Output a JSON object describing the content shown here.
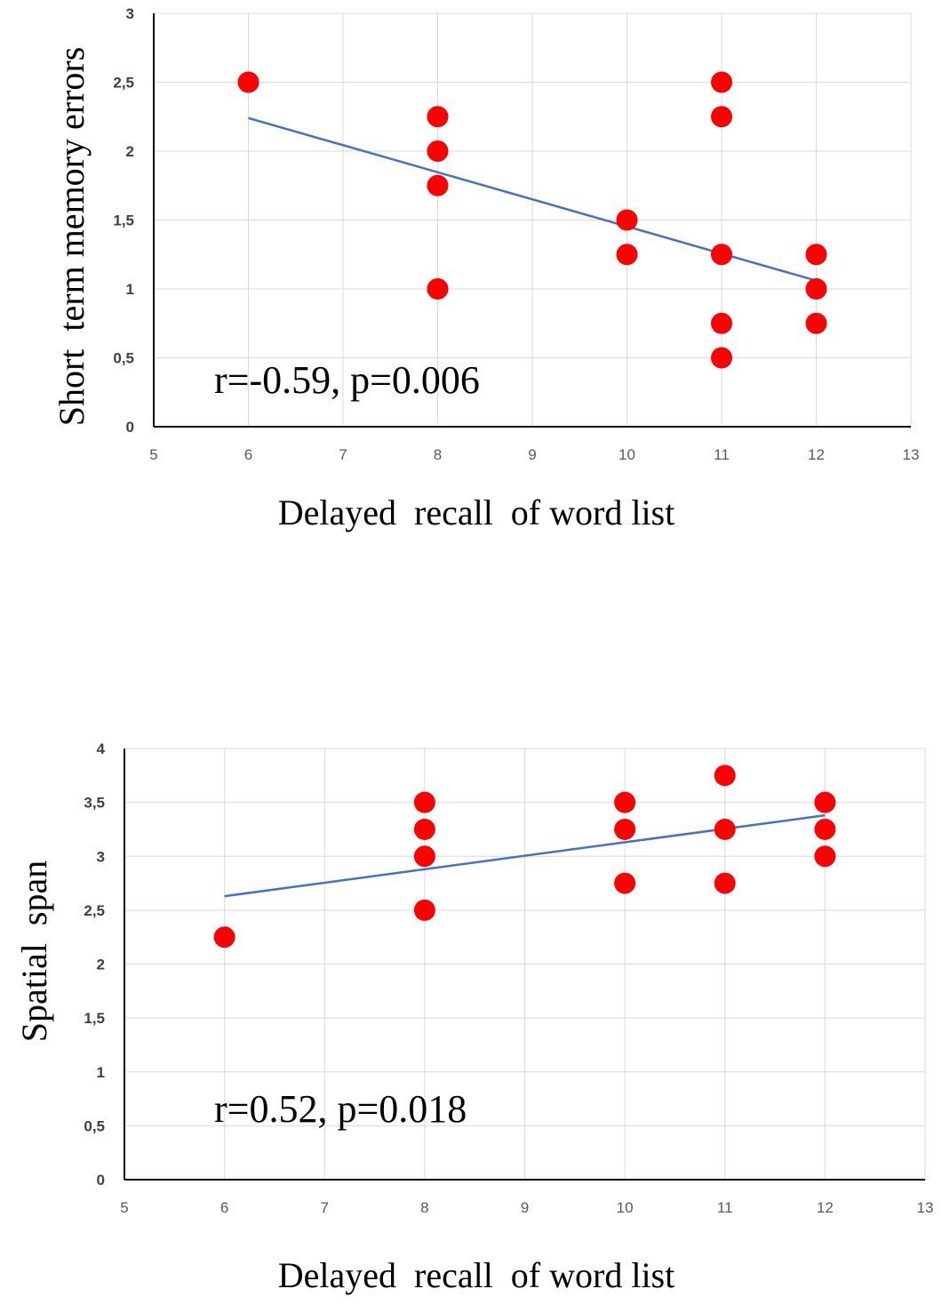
{
  "chart_data": [
    {
      "type": "scatter",
      "xlabel": "Delayed  recall  of word list",
      "ylabel": "Short  term memory errors",
      "annotation": "r=-0.59, p=0.006",
      "xlim": [
        5,
        13
      ],
      "ylim": [
        0,
        3
      ],
      "x_ticks": [
        "5",
        "6",
        "7",
        "8",
        "9",
        "10",
        "11",
        "12",
        "13"
      ],
      "y_ticks": [
        "0",
        "0,5",
        "1",
        "1,5",
        "2",
        "2,5",
        "3"
      ],
      "grid": true,
      "point_color": "#ff0000",
      "trendline_color": "#4472c4",
      "series": [
        {
          "x": [
            6,
            8,
            8,
            8,
            8,
            10,
            10,
            11,
            11,
            11,
            11,
            11,
            12,
            12,
            12
          ],
          "y": [
            2.5,
            2.25,
            2.0,
            1.75,
            1.0,
            1.5,
            1.25,
            2.5,
            2.25,
            1.25,
            0.75,
            0.5,
            1.25,
            1.0,
            0.75
          ]
        }
      ],
      "trendline": {
        "x": [
          6,
          12
        ],
        "y": [
          2.24,
          1.06
        ]
      }
    },
    {
      "type": "scatter",
      "xlabel": "Delayed  recall  of word list",
      "ylabel": "Spatial  span",
      "annotation": "r=0.52, p=0.018",
      "xlim": [
        5,
        13
      ],
      "ylim": [
        0,
        4
      ],
      "x_ticks": [
        "5",
        "6",
        "7",
        "8",
        "9",
        "10",
        "11",
        "12",
        "13"
      ],
      "y_ticks": [
        "0",
        "0,5",
        "1",
        "1,5",
        "2",
        "2,5",
        "3",
        "3,5",
        "4"
      ],
      "grid": true,
      "point_color": "#ff0000",
      "trendline_color": "#4472c4",
      "series": [
        {
          "x": [
            6,
            8,
            8,
            8,
            8,
            10,
            10,
            10,
            11,
            11,
            11,
            12,
            12,
            12
          ],
          "y": [
            2.25,
            3.5,
            3.25,
            3.0,
            2.5,
            3.5,
            3.25,
            2.75,
            3.75,
            3.25,
            2.75,
            3.5,
            3.25,
            3.0
          ]
        }
      ],
      "trendline": {
        "x": [
          6,
          12
        ],
        "y": [
          2.63,
          3.38
        ]
      }
    }
  ]
}
